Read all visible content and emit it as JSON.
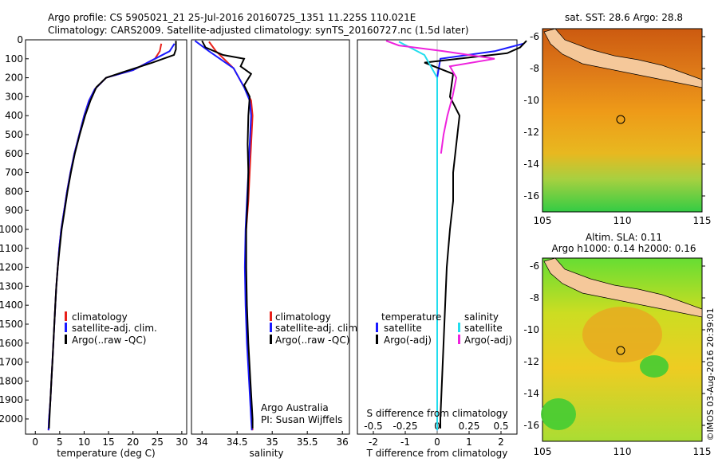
{
  "header": {
    "line1": "Argo profile: CS 5905021_21 25-Jul-2016 20160725_1351 11.225S 110.021E",
    "line2": "Climatology: CARS2009. Satellite-adjusted climatology: synTS_20160727.nc (1.5d later)"
  },
  "colors": {
    "climatology": "#e8201a",
    "satellite": "#1a1aff",
    "argo": "#000000",
    "argo_s": "#ee22dd",
    "sat_s": "#22ddee"
  },
  "depth_ticks": [
    "0",
    "100",
    "200",
    "300",
    "400",
    "500",
    "600",
    "700",
    "800",
    "900",
    "1000",
    "1100",
    "1200",
    "1300",
    "1400",
    "1500",
    "1600",
    "1700",
    "1800",
    "1900",
    "2000"
  ],
  "panel1": {
    "xlabel": "temperature (deg C)",
    "xticks": [
      "0",
      "5",
      "10",
      "15",
      "20",
      "25",
      "30"
    ],
    "legend": [
      "climatology",
      "satellite-adj. clim.",
      "Argo(..raw -QC)"
    ]
  },
  "panel2": {
    "xlabel": "salinity",
    "xticks": [
      "34",
      "34.5",
      "35",
      "35.5",
      "36"
    ],
    "legend": [
      "climatology",
      "satellite-adj. clim.",
      "Argo(..raw -QC)"
    ],
    "note1": "Argo Australia",
    "note2": "PI: Susan Wijffels"
  },
  "panel3": {
    "xlabel": "T difference from climatology",
    "xlabel_top": "S difference from climatology",
    "xticks_bottom": [
      "-2",
      "-1",
      "0",
      "1",
      "2"
    ],
    "xticks_top": [
      "-0.5",
      "-0.25",
      "0",
      "0.25",
      "0.5"
    ],
    "legend_left_title": "temperature",
    "legend_left": [
      "satellite",
      "Argo(-adj)"
    ],
    "legend_right_title": "salinity",
    "legend_right": [
      "satellite",
      "Argo(-adj)"
    ]
  },
  "map1": {
    "title": "sat. SST: 28.6 Argo: 28.8",
    "yticks": [
      "-6",
      "-8",
      "-10",
      "-12",
      "-14",
      "-16"
    ],
    "xticks": [
      "105",
      "110",
      "115"
    ]
  },
  "map2": {
    "title1": "Altim. SLA: 0.11",
    "title2": "Argo h1000: 0.14 h2000: 0.16",
    "yticks": [
      "-6",
      "-8",
      "-10",
      "-12",
      "-14",
      "-16"
    ],
    "xticks": [
      "105",
      "110",
      "115"
    ]
  },
  "watermark": "©IMOS 03-Aug-2016 20:39:01",
  "chart_data": [
    {
      "type": "line",
      "title": "",
      "xlabel": "temperature (deg C)",
      "ylabel": "",
      "xlim": [
        -2,
        31
      ],
      "ylim": [
        2080,
        0
      ],
      "series": [
        {
          "name": "climatology",
          "points": [
            [
              25.8,
              20
            ],
            [
              25.5,
              60
            ],
            [
              24.5,
              100
            ],
            [
              20,
              160
            ],
            [
              14.5,
              200
            ],
            [
              12.2,
              260
            ],
            [
              11,
              320
            ],
            [
              10,
              400
            ],
            [
              9,
              500
            ],
            [
              8,
              600
            ],
            [
              7.2,
              700
            ],
            [
              6.5,
              800
            ],
            [
              5.9,
              900
            ],
            [
              5.3,
              1000
            ],
            [
              4.9,
              1100
            ],
            [
              4.6,
              1200
            ],
            [
              4.3,
              1300
            ],
            [
              4.1,
              1400
            ],
            [
              3.9,
              1500
            ],
            [
              3.7,
              1600
            ],
            [
              3.5,
              1700
            ],
            [
              3.3,
              1800
            ],
            [
              3.1,
              1900
            ],
            [
              2.8,
              2000
            ],
            [
              2.7,
              2060
            ]
          ]
        },
        {
          "name": "satellite-adj. clim.",
          "points": [
            [
              28.5,
              20
            ],
            [
              27.5,
              60
            ],
            [
              24.5,
              100
            ],
            [
              20,
              160
            ],
            [
              14.5,
              200
            ],
            [
              12.2,
              260
            ],
            [
              11,
              320
            ],
            [
              10,
              400
            ],
            [
              9,
              500
            ],
            [
              8,
              600
            ],
            [
              7.2,
              700
            ],
            [
              6.5,
              800
            ],
            [
              5.9,
              900
            ],
            [
              5.3,
              1000
            ],
            [
              4.9,
              1100
            ],
            [
              4.6,
              1200
            ],
            [
              4.3,
              1300
            ],
            [
              4.1,
              1400
            ],
            [
              3.9,
              1500
            ],
            [
              3.7,
              1600
            ],
            [
              3.5,
              1700
            ],
            [
              3.3,
              1800
            ],
            [
              3.1,
              1900
            ],
            [
              2.8,
              2000
            ],
            [
              2.7,
              2060
            ]
          ]
        },
        {
          "name": "Argo(..raw -QC)",
          "points": [
            [
              28.8,
              5
            ],
            [
              28.8,
              50
            ],
            [
              28.4,
              80
            ],
            [
              24,
              120
            ],
            [
              18,
              170
            ],
            [
              14.5,
              200
            ],
            [
              12.5,
              250
            ],
            [
              11.3,
              320
            ],
            [
              10.2,
              400
            ],
            [
              9.1,
              500
            ],
            [
              8.1,
              600
            ],
            [
              7.3,
              700
            ],
            [
              6.6,
              800
            ],
            [
              6,
              900
            ],
            [
              5.4,
              1000
            ],
            [
              5,
              1100
            ],
            [
              4.6,
              1200
            ],
            [
              4.3,
              1300
            ],
            [
              4.1,
              1400
            ],
            [
              3.9,
              1500
            ],
            [
              3.7,
              1600
            ],
            [
              3.5,
              1700
            ],
            [
              3.3,
              1800
            ],
            [
              3.1,
              1900
            ],
            [
              2.9,
              2000
            ],
            [
              2.8,
              2050
            ]
          ]
        }
      ]
    },
    {
      "type": "line",
      "title": "",
      "xlabel": "salinity",
      "ylabel": "",
      "xlim": [
        33.85,
        36.1
      ],
      "ylim": [
        2080,
        0
      ],
      "series": [
        {
          "name": "climatology",
          "points": [
            [
              34.1,
              10
            ],
            [
              34.2,
              60
            ],
            [
              34.45,
              150
            ],
            [
              34.6,
              250
            ],
            [
              34.7,
              320
            ],
            [
              34.72,
              400
            ],
            [
              34.7,
              550
            ],
            [
              34.68,
              700
            ],
            [
              34.66,
              850
            ],
            [
              34.63,
              1000
            ],
            [
              34.62,
              1200
            ],
            [
              34.63,
              1400
            ],
            [
              34.65,
              1600
            ],
            [
              34.68,
              1800
            ],
            [
              34.71,
              2000
            ],
            [
              34.72,
              2060
            ]
          ]
        },
        {
          "name": "satellite-adj. clim.",
          "points": [
            [
              33.9,
              5
            ],
            [
              34.1,
              60
            ],
            [
              34.45,
              150
            ],
            [
              34.6,
              250
            ],
            [
              34.68,
              320
            ],
            [
              34.7,
              400
            ],
            [
              34.68,
              550
            ],
            [
              34.66,
              700
            ],
            [
              34.64,
              850
            ],
            [
              34.62,
              1000
            ],
            [
              34.61,
              1200
            ],
            [
              34.62,
              1400
            ],
            [
              34.64,
              1600
            ],
            [
              34.67,
              1800
            ],
            [
              34.7,
              2000
            ],
            [
              34.71,
              2060
            ]
          ]
        },
        {
          "name": "Argo(..raw -QC)",
          "points": [
            [
              34.0,
              5
            ],
            [
              34.05,
              40
            ],
            [
              34.3,
              80
            ],
            [
              34.6,
              100
            ],
            [
              34.55,
              140
            ],
            [
              34.7,
              180
            ],
            [
              34.6,
              240
            ],
            [
              34.68,
              300
            ],
            [
              34.66,
              400
            ],
            [
              34.65,
              550
            ],
            [
              34.66,
              700
            ],
            [
              34.65,
              850
            ],
            [
              34.63,
              1000
            ],
            [
              34.63,
              1200
            ],
            [
              34.64,
              1400
            ],
            [
              34.66,
              1600
            ],
            [
              34.69,
              1800
            ],
            [
              34.72,
              2000
            ],
            [
              34.72,
              2050
            ]
          ]
        }
      ]
    },
    {
      "type": "line",
      "title": "",
      "xlabel": "T difference from climatology",
      "xlabel_top": "S difference from climatology",
      "xlim": [
        -2.5,
        2.5
      ],
      "xlim_top": [
        -0.625,
        0.625
      ],
      "ylim": [
        2080,
        0
      ],
      "series": [
        {
          "name": "temperature satellite",
          "axis": "T",
          "points": [
            [
              2.7,
              20
            ],
            [
              1.8,
              60
            ],
            [
              0.1,
              100
            ],
            [
              0,
              200
            ],
            [
              0,
              500
            ],
            [
              0,
              1000
            ],
            [
              0,
              1500
            ],
            [
              0,
              2060
            ]
          ]
        },
        {
          "name": "temperature Argo(-adj)",
          "axis": "T",
          "points": [
            [
              2.8,
              5
            ],
            [
              2.6,
              40
            ],
            [
              2.2,
              70
            ],
            [
              -0.4,
              120
            ],
            [
              0.5,
              180
            ],
            [
              0.4,
              300
            ],
            [
              0.7,
              400
            ],
            [
              0.6,
              550
            ],
            [
              0.5,
              700
            ],
            [
              0.5,
              850
            ],
            [
              0.4,
              1000
            ],
            [
              0.3,
              1200
            ],
            [
              0.25,
              1400
            ],
            [
              0.2,
              1600
            ],
            [
              0.15,
              1800
            ],
            [
              0.1,
              2000
            ],
            [
              0.1,
              2050
            ]
          ]
        },
        {
          "name": "salinity satellite",
          "axis": "S",
          "points": [
            [
              -0.3,
              10
            ],
            [
              -0.1,
              80
            ],
            [
              0,
              200
            ],
            [
              0,
              500
            ],
            [
              0,
              1000
            ],
            [
              0,
              1500
            ],
            [
              0,
              2060
            ]
          ]
        },
        {
          "name": "salinity Argo(-adj)",
          "axis": "S",
          "points": [
            [
              -0.4,
              5
            ],
            [
              -0.3,
              30
            ],
            [
              0.05,
              60
            ],
            [
              0.45,
              100
            ],
            [
              0.1,
              140
            ],
            [
              0.15,
              200
            ],
            [
              0.12,
              300
            ],
            [
              0.08,
              400
            ],
            [
              0.05,
              500
            ],
            [
              0.03,
              600
            ]
          ]
        }
      ]
    }
  ]
}
